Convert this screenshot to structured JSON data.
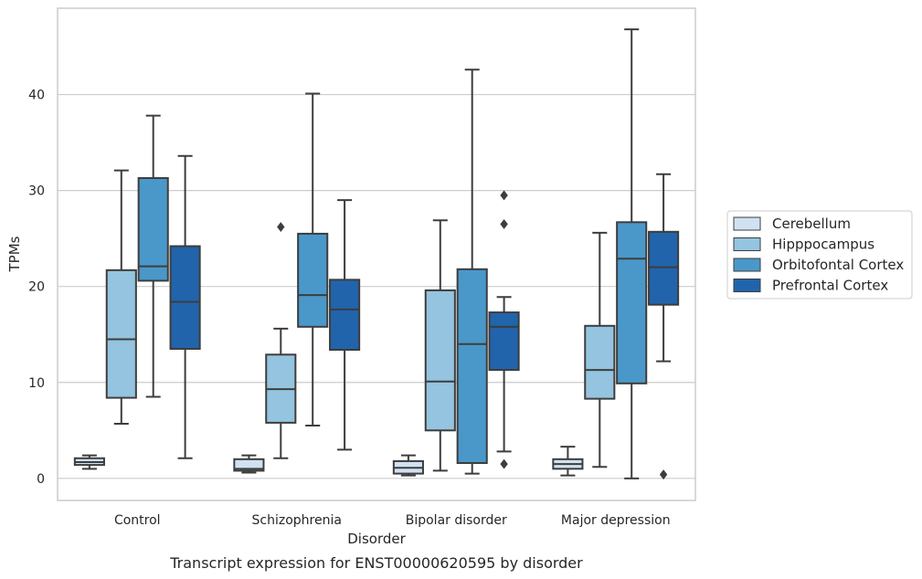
{
  "caption": "Transcript expression for ENST00000620595 by disorder",
  "chart_data": {
    "type": "box",
    "xlabel": "Disorder",
    "ylabel": "TPMs",
    "ylim": [
      -2.3,
      49
    ],
    "yticks": [
      0,
      10,
      20,
      30,
      40
    ],
    "grid": "horizontal",
    "legend_position": "right",
    "categories": [
      "Control",
      "Schizophrenia",
      "Bipolar disorder",
      "Major depression"
    ],
    "series": [
      {
        "name": "Cerebellum",
        "color": "#d0e1f2",
        "boxes": [
          {
            "whislo": 1.0,
            "q1": 1.4,
            "med": 1.7,
            "q3": 2.1,
            "whishi": 2.4,
            "fliers": []
          },
          {
            "whislo": 0.6,
            "q1": 0.8,
            "med": 1.0,
            "q3": 2.0,
            "whishi": 2.4,
            "fliers": []
          },
          {
            "whislo": 0.3,
            "q1": 0.5,
            "med": 1.1,
            "q3": 1.8,
            "whishi": 2.4,
            "fliers": []
          },
          {
            "whislo": 0.3,
            "q1": 1.0,
            "med": 1.5,
            "q3": 2.0,
            "whishi": 3.3,
            "fliers": []
          }
        ]
      },
      {
        "name": "Hipppocampus",
        "color": "#94c4df",
        "boxes": [
          {
            "whislo": 5.7,
            "q1": 8.4,
            "med": 14.5,
            "q3": 21.7,
            "whishi": 32.1,
            "fliers": []
          },
          {
            "whislo": 2.1,
            "q1": 5.8,
            "med": 9.3,
            "q3": 12.9,
            "whishi": 15.6,
            "fliers": [
              26.2
            ]
          },
          {
            "whislo": 0.8,
            "q1": 5.0,
            "med": 10.1,
            "q3": 19.6,
            "whishi": 26.9,
            "fliers": []
          },
          {
            "whislo": 1.2,
            "q1": 8.3,
            "med": 11.3,
            "q3": 15.9,
            "whishi": 25.6,
            "fliers": []
          }
        ]
      },
      {
        "name": "Orbitofontal Cortex",
        "color": "#4a98c9",
        "boxes": [
          {
            "whislo": 8.5,
            "q1": 20.6,
            "med": 22.1,
            "q3": 31.3,
            "whishi": 37.8,
            "fliers": []
          },
          {
            "whislo": 5.5,
            "q1": 15.8,
            "med": 19.1,
            "q3": 25.5,
            "whishi": 40.1,
            "fliers": []
          },
          {
            "whislo": 0.5,
            "q1": 1.6,
            "med": 14.0,
            "q3": 21.8,
            "whishi": 42.6,
            "fliers": []
          },
          {
            "whislo": 0.0,
            "q1": 9.9,
            "med": 22.9,
            "q3": 26.7,
            "whishi": 46.8,
            "fliers": []
          }
        ]
      },
      {
        "name": "Prefrontal Cortex",
        "color": "#2164ab",
        "boxes": [
          {
            "whislo": 2.1,
            "q1": 13.5,
            "med": 18.4,
            "q3": 24.2,
            "whishi": 33.6,
            "fliers": []
          },
          {
            "whislo": 3.0,
            "q1": 13.4,
            "med": 17.6,
            "q3": 20.7,
            "whishi": 29.0,
            "fliers": []
          },
          {
            "whislo": 2.8,
            "q1": 11.3,
            "med": 15.8,
            "q3": 17.3,
            "whishi": 18.9,
            "fliers": [
              1.5,
              26.5,
              29.5
            ]
          },
          {
            "whislo": 12.2,
            "q1": 18.1,
            "med": 22.0,
            "q3": 25.7,
            "whishi": 31.7,
            "fliers": [
              0.4
            ]
          }
        ]
      }
    ]
  }
}
